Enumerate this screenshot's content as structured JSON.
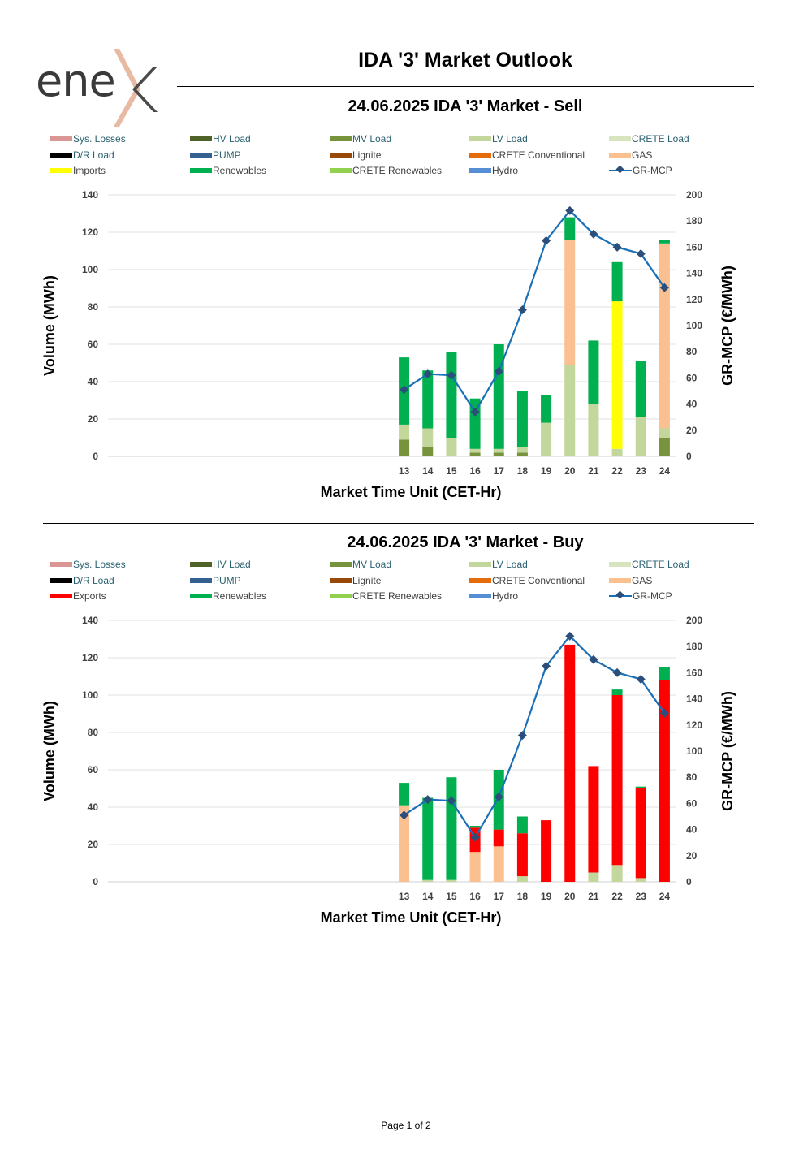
{
  "brand": {
    "logo_text": "ene",
    "logo_mark": "x"
  },
  "page_title": "IDA '3' Market Outlook",
  "footer": "Page 1 of 2",
  "colors": {
    "sys_losses": "#da9694",
    "hv_load": "#4f6228",
    "mv_load": "#77933c",
    "lv_load": "#c3d69b",
    "crete_load": "#d7e4bd",
    "dr_load": "#000000",
    "pump": "#376092",
    "lignite": "#984807",
    "crete_conventional": "#e46c0a",
    "gas": "#fac090",
    "imports": "#ffff00",
    "exports": "#ff0000",
    "renewables": "#00b050",
    "crete_renewables": "#92d050",
    "hydro": "#558ed5",
    "mcp_line": "#1a6fb5",
    "mcp_marker": "#2b4f7a"
  },
  "chart_data": [
    {
      "type": "bar",
      "stacked": true,
      "title": "24.06.2025  IDA '3' Market - Sell",
      "xlabel": "Market Time Unit (CET-Hr)",
      "ylabel": "Volume (MWh)",
      "y2label": "GR-MCP (€/MWh)",
      "ylim": [
        0,
        140
      ],
      "y2lim": [
        0,
        200
      ],
      "yticks": [
        "0",
        "20",
        "40",
        "60",
        "80",
        "100",
        "120",
        "140"
      ],
      "y2ticks": [
        "0",
        "20",
        "40",
        "60",
        "80",
        "100",
        "120",
        "140",
        "160",
        "180",
        "200"
      ],
      "grid": true,
      "legend": [
        {
          "label": "Sys. Losses",
          "key": "sys_losses",
          "style": "link"
        },
        {
          "label": "HV Load",
          "key": "hv_load",
          "style": "link"
        },
        {
          "label": "MV Load",
          "key": "mv_load",
          "style": "link"
        },
        {
          "label": "LV Load",
          "key": "lv_load",
          "style": "link"
        },
        {
          "label": "CRETE Load",
          "key": "crete_load",
          "style": "link"
        },
        {
          "label": "D/R Load",
          "key": "dr_load",
          "style": "link"
        },
        {
          "label": "PUMP",
          "key": "pump",
          "style": "link"
        },
        {
          "label": "Lignite",
          "key": "lignite",
          "style": "plain"
        },
        {
          "label": "CRETE Conventional",
          "key": "crete_conventional",
          "style": "plain"
        },
        {
          "label": "GAS",
          "key": "gas",
          "style": "plain"
        },
        {
          "label": "Imports",
          "key": "imports",
          "style": "plain"
        },
        {
          "label": "Renewables",
          "key": "renewables",
          "style": "plain"
        },
        {
          "label": "CRETE Renewables",
          "key": "crete_renewables",
          "style": "plain"
        },
        {
          "label": "Hydro",
          "key": "hydro",
          "style": "plain"
        },
        {
          "label": "GR-MCP",
          "key": "mcp",
          "style": "plain",
          "line": true
        }
      ],
      "x": [
        "1",
        "2",
        "3",
        "4",
        "5",
        "6",
        "7",
        "8",
        "9",
        "10",
        "11",
        "12",
        "13",
        "14",
        "15",
        "16",
        "17",
        "18",
        "19",
        "20",
        "21",
        "22",
        "23",
        "24"
      ],
      "x_labels_from": 13,
      "series": [
        {
          "name": "MV Load",
          "key": "mv_load",
          "values": [
            0,
            0,
            0,
            0,
            0,
            0,
            0,
            0,
            0,
            0,
            0,
            0,
            9,
            5,
            0,
            2,
            2,
            2,
            0,
            0,
            0,
            0,
            0,
            10
          ]
        },
        {
          "name": "LV Load",
          "key": "lv_load",
          "values": [
            0,
            0,
            0,
            0,
            0,
            0,
            0,
            0,
            0,
            0,
            0,
            0,
            8,
            10,
            10,
            2,
            2,
            3,
            18,
            49,
            28,
            4,
            21,
            5
          ]
        },
        {
          "name": "GAS",
          "key": "gas",
          "values": [
            0,
            0,
            0,
            0,
            0,
            0,
            0,
            0,
            0,
            0,
            0,
            0,
            0,
            0,
            0,
            0,
            0,
            0,
            0,
            67,
            0,
            0,
            0,
            99
          ]
        },
        {
          "name": "Imports",
          "key": "imports",
          "values": [
            0,
            0,
            0,
            0,
            0,
            0,
            0,
            0,
            0,
            0,
            0,
            0,
            0,
            0,
            0,
            0,
            0,
            0,
            0,
            0,
            0,
            79,
            0,
            0
          ]
        },
        {
          "name": "Renewables",
          "key": "renewables",
          "values": [
            0,
            0,
            0,
            0,
            0,
            0,
            0,
            0,
            0,
            0,
            0,
            0,
            36,
            31,
            46,
            27,
            56,
            30,
            15,
            12,
            34,
            21,
            30,
            2
          ]
        }
      ],
      "mcp": [
        null,
        null,
        null,
        null,
        null,
        null,
        null,
        null,
        null,
        null,
        null,
        null,
        51,
        63,
        62,
        34,
        65,
        112,
        165,
        188,
        170,
        160,
        155,
        129
      ]
    },
    {
      "type": "bar",
      "stacked": true,
      "title": "24.06.2025  IDA '3' Market - Buy",
      "xlabel": "Market Time Unit (CET-Hr)",
      "ylabel": "Volume (MWh)",
      "y2label": "GR-MCP (€/MWh)",
      "ylim": [
        0,
        140
      ],
      "y2lim": [
        0,
        200
      ],
      "yticks": [
        "0",
        "20",
        "40",
        "60",
        "80",
        "100",
        "120",
        "140"
      ],
      "y2ticks": [
        "0",
        "20",
        "40",
        "60",
        "80",
        "100",
        "120",
        "140",
        "160",
        "180",
        "200"
      ],
      "grid": true,
      "legend": [
        {
          "label": "Sys. Losses",
          "key": "sys_losses",
          "style": "link"
        },
        {
          "label": "HV Load",
          "key": "hv_load",
          "style": "link"
        },
        {
          "label": "MV Load",
          "key": "mv_load",
          "style": "link"
        },
        {
          "label": "LV Load",
          "key": "lv_load",
          "style": "link"
        },
        {
          "label": "CRETE Load",
          "key": "crete_load",
          "style": "link"
        },
        {
          "label": "D/R Load",
          "key": "dr_load",
          "style": "link"
        },
        {
          "label": "PUMP",
          "key": "pump",
          "style": "link"
        },
        {
          "label": "Lignite",
          "key": "lignite",
          "style": "plain"
        },
        {
          "label": "CRETE Conventional",
          "key": "crete_conventional",
          "style": "plain"
        },
        {
          "label": "GAS",
          "key": "gas",
          "style": "plain"
        },
        {
          "label": "Exports",
          "key": "exports",
          "style": "plain"
        },
        {
          "label": "Renewables",
          "key": "renewables",
          "style": "plain"
        },
        {
          "label": "CRETE Renewables",
          "key": "crete_renewables",
          "style": "plain"
        },
        {
          "label": "Hydro",
          "key": "hydro",
          "style": "plain"
        },
        {
          "label": "GR-MCP",
          "key": "mcp",
          "style": "plain",
          "line": true
        }
      ],
      "x": [
        "1",
        "2",
        "3",
        "4",
        "5",
        "6",
        "7",
        "8",
        "9",
        "10",
        "11",
        "12",
        "13",
        "14",
        "15",
        "16",
        "17",
        "18",
        "19",
        "20",
        "21",
        "22",
        "23",
        "24"
      ],
      "x_labels_from": 13,
      "series": [
        {
          "name": "LV Load",
          "key": "lv_load",
          "values": [
            0,
            0,
            0,
            0,
            0,
            0,
            0,
            0,
            0,
            0,
            0,
            0,
            0,
            1,
            1,
            0,
            0,
            3,
            0,
            0,
            5,
            9,
            2,
            0
          ]
        },
        {
          "name": "GAS",
          "key": "gas",
          "values": [
            0,
            0,
            0,
            0,
            0,
            0,
            0,
            0,
            0,
            0,
            0,
            0,
            41,
            0,
            0,
            16,
            19,
            0,
            0,
            0,
            0,
            0,
            0,
            0
          ]
        },
        {
          "name": "Exports",
          "key": "exports",
          "values": [
            0,
            0,
            0,
            0,
            0,
            0,
            0,
            0,
            0,
            0,
            0,
            0,
            0,
            0,
            0,
            13,
            9,
            23,
            33,
            127,
            57,
            91,
            48,
            108
          ]
        },
        {
          "name": "Renewables",
          "key": "renewables",
          "values": [
            0,
            0,
            0,
            0,
            0,
            0,
            0,
            0,
            0,
            0,
            0,
            0,
            12,
            44,
            55,
            1,
            32,
            9,
            0,
            0,
            0,
            3,
            1,
            7
          ]
        }
      ],
      "mcp": [
        null,
        null,
        null,
        null,
        null,
        null,
        null,
        null,
        null,
        null,
        null,
        null,
        51,
        63,
        62,
        34,
        65,
        112,
        165,
        188,
        170,
        160,
        155,
        129
      ]
    }
  ]
}
